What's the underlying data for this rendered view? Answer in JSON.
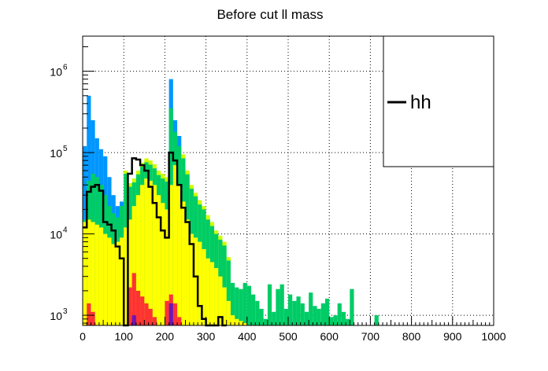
{
  "chart_data": {
    "type": "bar",
    "title": "Before cut ll mass",
    "xlabel": "",
    "ylabel": "",
    "xlim": [
      0,
      1000
    ],
    "ylim": [
      750,
      2700000
    ],
    "yscale": "log",
    "grid": true,
    "bin_width": 10,
    "x_ticks": [
      "0",
      "100",
      "200",
      "300",
      "400",
      "500",
      "600",
      "700",
      "800",
      "900",
      "1000"
    ],
    "y_ticks": [
      {
        "base": "10",
        "exp": "3",
        "value": 1000
      },
      {
        "base": "10",
        "exp": "4",
        "value": 10000
      },
      {
        "base": "10",
        "exp": "5",
        "value": 100000
      },
      {
        "base": "10",
        "exp": "6",
        "value": 1000000
      }
    ],
    "legend": {
      "placement": "top-right",
      "entries": [
        {
          "label": "hh",
          "color": "#000000"
        }
      ]
    },
    "stack": [
      {
        "color": "#0096ff",
        "values": [
          {
            "x": 0,
            "y": 120000
          },
          {
            "x": 10,
            "y": 500000
          },
          {
            "x": 20,
            "y": 250000
          },
          {
            "x": 30,
            "y": 150000
          },
          {
            "x": 40,
            "y": 110000
          },
          {
            "x": 50,
            "y": 90000
          },
          {
            "x": 60,
            "y": 50000
          },
          {
            "x": 70,
            "y": 30000
          },
          {
            "x": 80,
            "y": 22000
          },
          {
            "x": 90,
            "y": 25000
          },
          {
            "x": 210,
            "y": 800000
          },
          {
            "x": 220,
            "y": 250000
          },
          {
            "x": 230,
            "y": 160000
          }
        ]
      },
      {
        "color": "#ccff00",
        "values": [
          {
            "x": 100,
            "y": 60000
          },
          {
            "x": 110,
            "y": 42000
          },
          {
            "x": 120,
            "y": 48000
          },
          {
            "x": 130,
            "y": 60000
          },
          {
            "x": 140,
            "y": 75000
          },
          {
            "x": 150,
            "y": 85000
          },
          {
            "x": 160,
            "y": 80000
          },
          {
            "x": 170,
            "y": 72000
          },
          {
            "x": 180,
            "y": 60000
          },
          {
            "x": 190,
            "y": 55000
          },
          {
            "x": 200,
            "y": 50000
          },
          {
            "x": 240,
            "y": 95000
          },
          {
            "x": 250,
            "y": 60000
          },
          {
            "x": 260,
            "y": 40000
          },
          {
            "x": 270,
            "y": 32000
          },
          {
            "x": 280,
            "y": 26000
          },
          {
            "x": 290,
            "y": 22000
          },
          {
            "x": 300,
            "y": 17000
          },
          {
            "x": 310,
            "y": 14000
          },
          {
            "x": 320,
            "y": 11000
          },
          {
            "x": 330,
            "y": 9500
          },
          {
            "x": 340,
            "y": 8000
          },
          {
            "x": 350,
            "y": 5200
          }
        ]
      },
      {
        "color": "#00cc66",
        "values": [
          {
            "x": 0,
            "y": 15000
          },
          {
            "x": 10,
            "y": 45000
          },
          {
            "x": 20,
            "y": 55000
          },
          {
            "x": 30,
            "y": 50000
          },
          {
            "x": 40,
            "y": 40000
          },
          {
            "x": 50,
            "y": 30000
          },
          {
            "x": 60,
            "y": 22000
          },
          {
            "x": 70,
            "y": 18000
          },
          {
            "x": 80,
            "y": 16000
          },
          {
            "x": 90,
            "y": 22000
          },
          {
            "x": 100,
            "y": 55000
          },
          {
            "x": 110,
            "y": 38000
          },
          {
            "x": 120,
            "y": 43000
          },
          {
            "x": 130,
            "y": 54000
          },
          {
            "x": 140,
            "y": 67000
          },
          {
            "x": 150,
            "y": 76000
          },
          {
            "x": 160,
            "y": 71000
          },
          {
            "x": 170,
            "y": 64000
          },
          {
            "x": 180,
            "y": 53000
          },
          {
            "x": 190,
            "y": 48000
          },
          {
            "x": 200,
            "y": 44000
          },
          {
            "x": 210,
            "y": 350000
          },
          {
            "x": 220,
            "y": 180000
          },
          {
            "x": 230,
            "y": 120000
          },
          {
            "x": 240,
            "y": 85000
          },
          {
            "x": 250,
            "y": 54000
          },
          {
            "x": 260,
            "y": 36000
          },
          {
            "x": 270,
            "y": 29000
          },
          {
            "x": 280,
            "y": 23000
          },
          {
            "x": 290,
            "y": 20000
          },
          {
            "x": 300,
            "y": 15000
          },
          {
            "x": 310,
            "y": 12500
          },
          {
            "x": 320,
            "y": 10000
          },
          {
            "x": 330,
            "y": 8500
          },
          {
            "x": 340,
            "y": 7200
          },
          {
            "x": 350,
            "y": 4700
          },
          {
            "x": 360,
            "y": 2500
          },
          {
            "x": 370,
            "y": 2200
          },
          {
            "x": 380,
            "y": 2100
          },
          {
            "x": 390,
            "y": 2500
          },
          {
            "x": 400,
            "y": 2300
          },
          {
            "x": 410,
            "y": 1800
          },
          {
            "x": 420,
            "y": 1500
          },
          {
            "x": 430,
            "y": 1200
          },
          {
            "x": 440,
            "y": 900
          },
          {
            "x": 450,
            "y": 2400
          },
          {
            "x": 460,
            "y": 1100
          },
          {
            "x": 470,
            "y": 2100
          },
          {
            "x": 480,
            "y": 2400
          },
          {
            "x": 490,
            "y": 1200
          },
          {
            "x": 500,
            "y": 1800
          },
          {
            "x": 510,
            "y": 1500
          },
          {
            "x": 520,
            "y": 1700
          },
          {
            "x": 530,
            "y": 1400
          },
          {
            "x": 540,
            "y": 1100
          },
          {
            "x": 550,
            "y": 1900
          },
          {
            "x": 560,
            "y": 1300
          },
          {
            "x": 570,
            "y": 1200
          },
          {
            "x": 580,
            "y": 1400
          },
          {
            "x": 590,
            "y": 1600
          },
          {
            "x": 600,
            "y": 950
          },
          {
            "x": 610,
            "y": 1000
          },
          {
            "x": 620,
            "y": 1400
          },
          {
            "x": 630,
            "y": 1100
          },
          {
            "x": 640,
            "y": 900
          },
          {
            "x": 650,
            "y": 2100
          },
          {
            "x": 710,
            "y": 1000
          }
        ]
      },
      {
        "color": "#ffff00",
        "values": [
          {
            "x": 0,
            "y": 14000
          },
          {
            "x": 10,
            "y": 15000
          },
          {
            "x": 20,
            "y": 14000
          },
          {
            "x": 30,
            "y": 13000
          },
          {
            "x": 40,
            "y": 12000
          },
          {
            "x": 50,
            "y": 10000
          },
          {
            "x": 60,
            "y": 9000
          },
          {
            "x": 70,
            "y": 7500
          },
          {
            "x": 80,
            "y": 8000
          },
          {
            "x": 90,
            "y": 9000
          },
          {
            "x": 100,
            "y": 12000
          },
          {
            "x": 110,
            "y": 15000
          },
          {
            "x": 120,
            "y": 22000
          },
          {
            "x": 130,
            "y": 30000
          },
          {
            "x": 140,
            "y": 40000
          },
          {
            "x": 150,
            "y": 48000
          },
          {
            "x": 160,
            "y": 45000
          },
          {
            "x": 170,
            "y": 40000
          },
          {
            "x": 180,
            "y": 30000
          },
          {
            "x": 190,
            "y": 24000
          },
          {
            "x": 200,
            "y": 20000
          },
          {
            "x": 210,
            "y": 40000
          },
          {
            "x": 220,
            "y": 70000
          },
          {
            "x": 230,
            "y": 40000
          },
          {
            "x": 240,
            "y": 25000
          },
          {
            "x": 250,
            "y": 15000
          },
          {
            "x": 260,
            "y": 10000
          },
          {
            "x": 270,
            "y": 9000
          },
          {
            "x": 280,
            "y": 8000
          },
          {
            "x": 290,
            "y": 6500
          },
          {
            "x": 300,
            "y": 5000
          },
          {
            "x": 310,
            "y": 4500
          },
          {
            "x": 320,
            "y": 3800
          },
          {
            "x": 330,
            "y": 3000
          },
          {
            "x": 340,
            "y": 2200
          },
          {
            "x": 350,
            "y": 1500
          },
          {
            "x": 360,
            "y": 1000
          },
          {
            "x": 370,
            "y": 900
          },
          {
            "x": 380,
            "y": 850
          },
          {
            "x": 390,
            "y": 800
          }
        ]
      },
      {
        "color": "#ff3333",
        "values": [
          {
            "x": 10,
            "y": 1400
          },
          {
            "x": 20,
            "y": 1100
          },
          {
            "x": 110,
            "y": 2200
          },
          {
            "x": 120,
            "y": 3300
          },
          {
            "x": 130,
            "y": 2000
          },
          {
            "x": 140,
            "y": 1700
          },
          {
            "x": 150,
            "y": 1400
          },
          {
            "x": 160,
            "y": 1200
          },
          {
            "x": 170,
            "y": 950
          },
          {
            "x": 200,
            "y": 1500
          },
          {
            "x": 210,
            "y": 1800
          },
          {
            "x": 220,
            "y": 1400
          },
          {
            "x": 230,
            "y": 950
          }
        ]
      },
      {
        "color": "#6f14b8",
        "values": [
          {
            "x": 120,
            "y": 1000
          },
          {
            "x": 210,
            "y": 1400
          }
        ]
      }
    ],
    "series": [
      {
        "name": "hh",
        "style": "step",
        "values": [
          {
            "x": 0,
            "y": 12000
          },
          {
            "x": 10,
            "y": 33000
          },
          {
            "x": 20,
            "y": 38000
          },
          {
            "x": 30,
            "y": 40000
          },
          {
            "x": 40,
            "y": 34000
          },
          {
            "x": 50,
            "y": 14000
          },
          {
            "x": 60,
            "y": 13000
          },
          {
            "x": 70,
            "y": 11000
          },
          {
            "x": 80,
            "y": 7000
          },
          {
            "x": 90,
            "y": 5000
          },
          {
            "x": 100,
            "y": 700
          },
          {
            "x": 110,
            "y": 55000
          },
          {
            "x": 120,
            "y": 85000
          },
          {
            "x": 130,
            "y": 82000
          },
          {
            "x": 140,
            "y": 70000
          },
          {
            "x": 150,
            "y": 60000
          },
          {
            "x": 160,
            "y": 38000
          },
          {
            "x": 170,
            "y": 24000
          },
          {
            "x": 180,
            "y": 16000
          },
          {
            "x": 190,
            "y": 11000
          },
          {
            "x": 200,
            "y": 9000
          },
          {
            "x": 210,
            "y": 100000
          },
          {
            "x": 220,
            "y": 80000
          },
          {
            "x": 230,
            "y": 40000
          },
          {
            "x": 240,
            "y": 21000
          },
          {
            "x": 250,
            "y": 14000
          },
          {
            "x": 260,
            "y": 7500
          },
          {
            "x": 270,
            "y": 3000
          },
          {
            "x": 280,
            "y": 1300
          },
          {
            "x": 290,
            "y": 900
          },
          {
            "x": 300,
            "y": 700
          },
          {
            "x": 310,
            "y": 700
          },
          {
            "x": 320,
            "y": 700
          },
          {
            "x": 330,
            "y": 950
          },
          {
            "x": 340,
            "y": 700
          }
        ]
      }
    ]
  }
}
